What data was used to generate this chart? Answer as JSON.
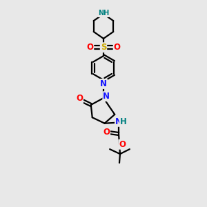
{
  "bg_color": "#e8e8e8",
  "atom_colors": {
    "C": "#000000",
    "N": "#1414ff",
    "O": "#ff0000",
    "S": "#ccaa00",
    "H": "#008080"
  },
  "line_color": "#000000",
  "line_width": 1.6,
  "figure_size": [
    3.0,
    3.0
  ],
  "dpi": 100,
  "xlim": [
    0,
    10
  ],
  "ylim": [
    0,
    15
  ]
}
